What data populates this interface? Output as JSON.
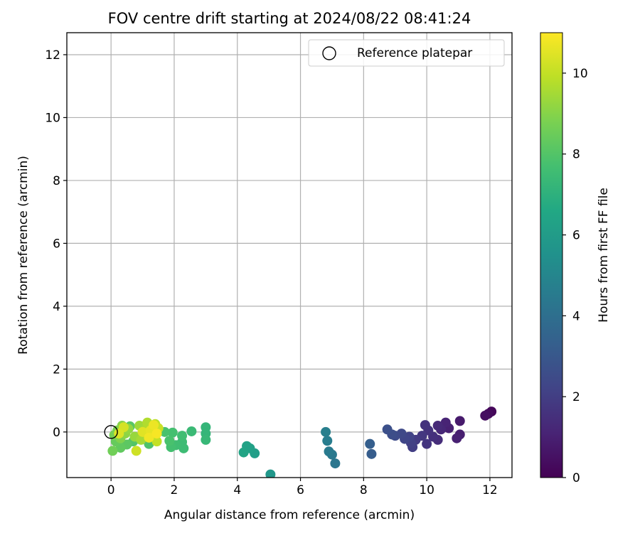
{
  "chart_data": {
    "type": "scatter",
    "title": "FOV centre drift starting at 2024/08/22 08:41:24",
    "xlabel": "Angular distance from reference (arcmin)",
    "ylabel": "Rotation from reference (arcmin)",
    "xlim": [
      -1.4,
      12.7
    ],
    "ylim": [
      -1.45,
      12.7
    ],
    "xticks": [
      0,
      2,
      4,
      6,
      8,
      10,
      12
    ],
    "yticks": [
      0,
      2,
      4,
      6,
      8,
      10,
      12
    ],
    "grid": true,
    "legend": {
      "position": "top-right",
      "entries": [
        "Reference platepar"
      ]
    },
    "reference_point": {
      "x": 0,
      "y": 0,
      "label": "Reference platepar"
    },
    "colorbar": {
      "label": "Hours from first FF file",
      "min": 0,
      "max": 11,
      "ticks": [
        0,
        2,
        4,
        6,
        8,
        10
      ],
      "colormap": "viridis"
    },
    "points": [
      {
        "x": 12.05,
        "y": 0.65,
        "h": 0.2
      },
      {
        "x": 11.95,
        "y": 0.58,
        "h": 0.3
      },
      {
        "x": 11.85,
        "y": 0.52,
        "h": 0.4
      },
      {
        "x": 11.05,
        "y": 0.35,
        "h": 0.8
      },
      {
        "x": 11.05,
        "y": -0.08,
        "h": 0.9
      },
      {
        "x": 10.95,
        "y": -0.2,
        "h": 1.0
      },
      {
        "x": 10.7,
        "y": 0.12,
        "h": 1.0
      },
      {
        "x": 10.6,
        "y": 0.3,
        "h": 1.1
      },
      {
        "x": 10.45,
        "y": 0.08,
        "h": 1.2
      },
      {
        "x": 10.35,
        "y": 0.2,
        "h": 1.3
      },
      {
        "x": 10.35,
        "y": -0.25,
        "h": 1.4
      },
      {
        "x": 10.2,
        "y": -0.15,
        "h": 1.5
      },
      {
        "x": 10.05,
        "y": 0.05,
        "h": 1.6
      },
      {
        "x": 9.95,
        "y": 0.22,
        "h": 1.6
      },
      {
        "x": 10.0,
        "y": -0.38,
        "h": 1.7
      },
      {
        "x": 9.85,
        "y": -0.12,
        "h": 1.8
      },
      {
        "x": 9.65,
        "y": -0.25,
        "h": 1.9
      },
      {
        "x": 9.55,
        "y": -0.48,
        "h": 2.0
      },
      {
        "x": 9.5,
        "y": -0.35,
        "h": 2.1
      },
      {
        "x": 9.45,
        "y": -0.15,
        "h": 2.2
      },
      {
        "x": 9.3,
        "y": -0.22,
        "h": 2.3
      },
      {
        "x": 9.2,
        "y": -0.05,
        "h": 2.4
      },
      {
        "x": 9.0,
        "y": -0.12,
        "h": 2.5
      },
      {
        "x": 8.9,
        "y": -0.08,
        "h": 2.6
      },
      {
        "x": 8.75,
        "y": 0.08,
        "h": 2.7
      },
      {
        "x": 8.25,
        "y": -0.7,
        "h": 3.2
      },
      {
        "x": 8.2,
        "y": -0.38,
        "h": 3.3
      },
      {
        "x": 7.1,
        "y": -1.0,
        "h": 4.3
      },
      {
        "x": 7.0,
        "y": -0.72,
        "h": 4.4
      },
      {
        "x": 6.9,
        "y": -0.62,
        "h": 4.5
      },
      {
        "x": 6.85,
        "y": -0.28,
        "h": 4.6
      },
      {
        "x": 6.8,
        "y": 0.0,
        "h": 4.7
      },
      {
        "x": 5.05,
        "y": -1.35,
        "h": 5.8
      },
      {
        "x": 4.55,
        "y": -0.68,
        "h": 6.1
      },
      {
        "x": 4.4,
        "y": -0.52,
        "h": 6.2
      },
      {
        "x": 4.3,
        "y": -0.45,
        "h": 6.3
      },
      {
        "x": 4.2,
        "y": -0.65,
        "h": 6.4
      },
      {
        "x": 3.0,
        "y": 0.15,
        "h": 7.2
      },
      {
        "x": 3.0,
        "y": -0.05,
        "h": 7.2
      },
      {
        "x": 3.0,
        "y": -0.25,
        "h": 7.3
      },
      {
        "x": 2.55,
        "y": 0.02,
        "h": 7.4
      },
      {
        "x": 2.3,
        "y": -0.52,
        "h": 7.5
      },
      {
        "x": 2.25,
        "y": -0.32,
        "h": 7.5
      },
      {
        "x": 2.25,
        "y": -0.12,
        "h": 7.6
      },
      {
        "x": 2.05,
        "y": -0.42,
        "h": 7.6
      },
      {
        "x": 1.95,
        "y": -0.02,
        "h": 7.7
      },
      {
        "x": 1.9,
        "y": -0.48,
        "h": 7.7
      },
      {
        "x": 1.85,
        "y": -0.28,
        "h": 7.8
      },
      {
        "x": 1.7,
        "y": 0.0,
        "h": 7.8
      },
      {
        "x": 1.2,
        "y": -0.38,
        "h": 7.9
      },
      {
        "x": 1.1,
        "y": -0.22,
        "h": 8.0
      },
      {
        "x": 0.7,
        "y": -0.3,
        "h": 8.0
      },
      {
        "x": 0.6,
        "y": 0.18,
        "h": 8.1
      },
      {
        "x": 0.5,
        "y": -0.4,
        "h": 8.2
      },
      {
        "x": 0.3,
        "y": -0.5,
        "h": 8.3
      },
      {
        "x": 0.15,
        "y": -0.3,
        "h": 8.4
      },
      {
        "x": 0.05,
        "y": -0.6,
        "h": 8.6
      },
      {
        "x": 0.1,
        "y": -0.1,
        "h": 8.7
      },
      {
        "x": 0.2,
        "y": 0.05,
        "h": 8.8
      },
      {
        "x": 0.3,
        "y": -0.2,
        "h": 8.9
      },
      {
        "x": 0.35,
        "y": 0.2,
        "h": 9.0
      },
      {
        "x": 0.45,
        "y": -0.05,
        "h": 9.1
      },
      {
        "x": 0.55,
        "y": 0.1,
        "h": 9.2
      },
      {
        "x": 0.75,
        "y": -0.15,
        "h": 9.3
      },
      {
        "x": 0.9,
        "y": 0.2,
        "h": 9.4
      },
      {
        "x": 0.95,
        "y": -0.25,
        "h": 9.5
      },
      {
        "x": 1.05,
        "y": 0.05,
        "h": 9.6
      },
      {
        "x": 1.15,
        "y": 0.3,
        "h": 9.7
      },
      {
        "x": 1.3,
        "y": -0.1,
        "h": 9.8
      },
      {
        "x": 1.4,
        "y": 0.25,
        "h": 9.9
      },
      {
        "x": 1.45,
        "y": -0.3,
        "h": 10.0
      },
      {
        "x": 1.5,
        "y": 0.12,
        "h": 10.1
      },
      {
        "x": 0.8,
        "y": -0.6,
        "h": 10.2
      },
      {
        "x": 0.4,
        "y": 0.15,
        "h": 10.3
      },
      {
        "x": 0.25,
        "y": -0.05,
        "h": 10.4
      },
      {
        "x": 1.0,
        "y": 0.0,
        "h": 10.5
      },
      {
        "x": 1.25,
        "y": 0.05,
        "h": 10.6
      },
      {
        "x": 1.35,
        "y": 0.22,
        "h": 10.7
      },
      {
        "x": 1.2,
        "y": -0.18,
        "h": 10.8
      },
      {
        "x": 1.45,
        "y": -0.05,
        "h": 10.9
      }
    ]
  }
}
